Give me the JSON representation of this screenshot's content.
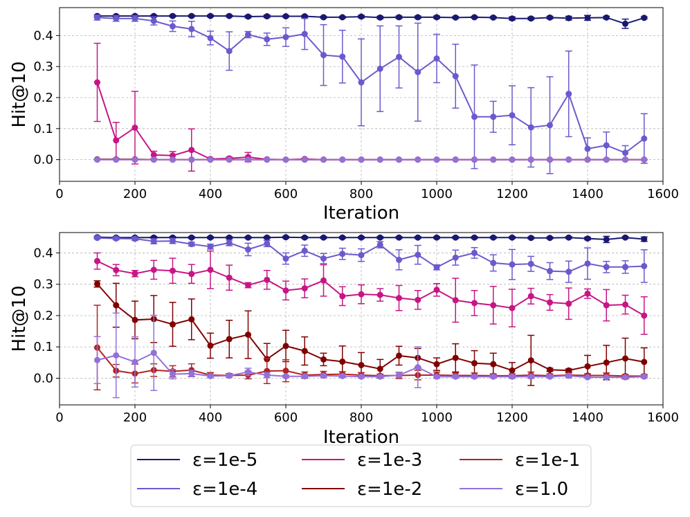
{
  "chart_data": [
    {
      "type": "line",
      "ylabel": "Hit@10",
      "xlabel": "Iteration",
      "xlim": [
        0,
        1600
      ],
      "ylim": [
        -0.07,
        0.49
      ],
      "xticks": [
        0,
        200,
        400,
        600,
        800,
        1000,
        1200,
        1400,
        1600
      ],
      "yticks": [
        0.0,
        0.1,
        0.2,
        0.3,
        0.4
      ],
      "grid": true,
      "x": [
        100,
        150,
        200,
        250,
        300,
        350,
        400,
        450,
        500,
        550,
        600,
        650,
        700,
        750,
        800,
        850,
        900,
        950,
        1000,
        1050,
        1100,
        1150,
        1200,
        1250,
        1300,
        1350,
        1400,
        1450,
        1500,
        1550
      ],
      "series": [
        {
          "name": "ε=1e-5",
          "color": "#191970",
          "values": [
            0.463,
            0.463,
            0.463,
            0.463,
            0.463,
            0.463,
            0.463,
            0.463,
            0.461,
            0.462,
            0.462,
            0.462,
            0.459,
            0.459,
            0.461,
            0.458,
            0.459,
            0.459,
            0.459,
            0.458,
            0.459,
            0.458,
            0.455,
            0.455,
            0.458,
            0.456,
            0.457,
            0.458,
            0.438,
            0.457
          ],
          "errors": [
            0.004,
            0.003,
            0.003,
            0.003,
            0.003,
            0.003,
            0.003,
            0.003,
            0.004,
            0.004,
            0.003,
            0.003,
            0.003,
            0.003,
            0.004,
            0.004,
            0.004,
            0.004,
            0.004,
            0.003,
            0.003,
            0.003,
            0.005,
            0.004,
            0.004,
            0.006,
            0.008,
            0.004,
            0.015,
            0.003
          ]
        },
        {
          "name": "ε=1e-4",
          "color": "#6a5acd",
          "values": [
            0.458,
            0.455,
            0.455,
            0.447,
            0.43,
            0.421,
            0.392,
            0.35,
            0.403,
            0.388,
            0.395,
            0.405,
            0.337,
            0.332,
            0.249,
            0.293,
            0.331,
            0.282,
            0.326,
            0.269,
            0.138,
            0.138,
            0.143,
            0.104,
            0.111,
            0.212,
            0.035,
            0.046,
            0.022,
            0.068
          ],
          "errors": [
            0.008,
            0.009,
            0.009,
            0.013,
            0.017,
            0.025,
            0.022,
            0.062,
            0.01,
            0.02,
            0.03,
            0.05,
            0.098,
            0.085,
            0.14,
            0.138,
            0.1,
            0.158,
            0.078,
            0.103,
            0.167,
            0.05,
            0.095,
            0.128,
            0.156,
            0.138,
            0.035,
            0.043,
            0.023,
            0.08
          ]
        },
        {
          "name": "ε=1e-3",
          "color": "#c71585",
          "values": [
            0.249,
            0.062,
            0.103,
            0.015,
            0.013,
            0.031,
            0.002,
            0.004,
            0.008,
            0.001,
            0.0,
            0.002,
            0.0,
            0.0,
            0.0,
            0.0,
            0.0,
            0.0,
            0.0,
            0.0,
            0.0,
            0.0,
            0.0,
            0.0,
            0.0,
            0.0,
            0.0,
            0.0,
            0.0,
            0.0
          ],
          "errors": [
            0.126,
            0.058,
            0.117,
            0.012,
            0.013,
            0.068,
            0.002,
            0.004,
            0.015,
            0.001,
            0.0,
            0.002,
            0.0,
            0.0,
            0.0,
            0.0,
            0.0,
            0.0,
            0.0,
            0.0,
            0.0,
            0.0,
            0.0,
            0.0,
            0.0,
            0.0,
            0.0,
            0.0,
            0.0,
            0.0
          ]
        },
        {
          "name": "ε=1e-2",
          "color": "#800000",
          "values": [
            0.001,
            0.001,
            0.001,
            0.0,
            0.0,
            0.0,
            0.0,
            0.0,
            0.0,
            0.0,
            0.0,
            0.0,
            0.0,
            0.0,
            0.0,
            0.0,
            0.0,
            0.0,
            0.0,
            0.0,
            0.0,
            0.0,
            0.0,
            0.0,
            0.0,
            0.0,
            0.0,
            0.0,
            0.0,
            0.0
          ],
          "errors": [
            0.001,
            0.001,
            0.001,
            0,
            0,
            0,
            0,
            0,
            0,
            0,
            0,
            0,
            0,
            0,
            0,
            0,
            0,
            0,
            0,
            0,
            0,
            0,
            0,
            0,
            0,
            0,
            0,
            0,
            0,
            0
          ]
        },
        {
          "name": "ε=1e-1",
          "color": "#b22222",
          "values": [
            0.0,
            0.0,
            0.0,
            0.0,
            0.0,
            0.0,
            0.0,
            0.0,
            0.0,
            0.0,
            0.0,
            0.0,
            0.0,
            0.0,
            0.0,
            0.0,
            0.0,
            0.0,
            0.0,
            0.0,
            0.0,
            0.0,
            0.0,
            0.0,
            0.0,
            0.0,
            0.0,
            0.0,
            0.0,
            0.0
          ],
          "errors": [
            0,
            0,
            0,
            0,
            0,
            0,
            0,
            0,
            0,
            0,
            0,
            0,
            0,
            0,
            0,
            0,
            0,
            0,
            0,
            0,
            0,
            0,
            0,
            0,
            0,
            0,
            0,
            0,
            0,
            0
          ]
        },
        {
          "name": "ε=1.0",
          "color": "#9370db",
          "values": [
            0.0,
            0.0,
            0.0,
            0.0,
            0.0,
            0.0,
            0.0,
            0.0,
            0.0,
            0.0,
            0.0,
            0.0,
            0.0,
            0.0,
            0.0,
            0.0,
            0.0,
            0.0,
            0.0,
            0.0,
            0.0,
            0.0,
            0.0,
            0.0,
            0.0,
            0.0,
            0.0,
            0.0,
            0.0,
            0.0
          ],
          "errors": [
            0,
            0,
            0,
            0,
            0,
            0,
            0,
            0,
            0,
            0,
            0,
            0,
            0,
            0,
            0,
            0,
            0,
            0,
            0,
            0,
            0,
            0,
            0,
            0,
            0,
            0,
            0,
            0,
            0,
            0
          ]
        }
      ]
    },
    {
      "type": "line",
      "ylabel": "Hit@10",
      "xlabel": "Iteration",
      "xlim": [
        0,
        1600
      ],
      "ylim": [
        -0.085,
        0.465
      ],
      "xticks": [
        0,
        200,
        400,
        600,
        800,
        1000,
        1200,
        1400,
        1600
      ],
      "yticks": [
        0.0,
        0.1,
        0.2,
        0.3,
        0.4
      ],
      "grid": true,
      "x": [
        100,
        150,
        200,
        250,
        300,
        350,
        400,
        450,
        500,
        550,
        600,
        650,
        700,
        750,
        800,
        850,
        900,
        950,
        1000,
        1050,
        1100,
        1150,
        1200,
        1250,
        1300,
        1350,
        1400,
        1450,
        1500,
        1550
      ],
      "series": [
        {
          "name": "ε=1e-5",
          "color": "#191970",
          "values": [
            0.45,
            0.449,
            0.449,
            0.449,
            0.449,
            0.449,
            0.449,
            0.449,
            0.449,
            0.449,
            0.45,
            0.449,
            0.449,
            0.449,
            0.449,
            0.449,
            0.449,
            0.449,
            0.449,
            0.449,
            0.449,
            0.449,
            0.449,
            0.448,
            0.448,
            0.449,
            0.446,
            0.443,
            0.449,
            0.444
          ],
          "errors": [
            0.003,
            0.003,
            0.003,
            0.003,
            0.003,
            0.003,
            0.003,
            0.003,
            0.003,
            0.003,
            0.003,
            0.003,
            0.003,
            0.003,
            0.003,
            0.003,
            0.003,
            0.003,
            0.003,
            0.003,
            0.003,
            0.003,
            0.003,
            0.003,
            0.003,
            0.003,
            0.004,
            0.01,
            0.003,
            0.007
          ]
        },
        {
          "name": "ε=1e-4",
          "color": "#6a5acd",
          "values": [
            0.448,
            0.446,
            0.445,
            0.437,
            0.438,
            0.428,
            0.42,
            0.432,
            0.411,
            0.43,
            0.382,
            0.407,
            0.382,
            0.397,
            0.393,
            0.426,
            0.378,
            0.394,
            0.354,
            0.385,
            0.4,
            0.368,
            0.363,
            0.365,
            0.342,
            0.34,
            0.366,
            0.355,
            0.355,
            0.358
          ],
          "errors": [
            0.003,
            0.004,
            0.005,
            0.008,
            0.008,
            0.006,
            0.008,
            0.009,
            0.02,
            0.01,
            0.018,
            0.018,
            0.016,
            0.018,
            0.02,
            0.01,
            0.032,
            0.03,
            0.008,
            0.024,
            0.017,
            0.026,
            0.048,
            0.024,
            0.027,
            0.034,
            0.05,
            0.018,
            0.02,
            0.052
          ]
        },
        {
          "name": "ε=1e-3",
          "color": "#c71585",
          "values": [
            0.374,
            0.345,
            0.334,
            0.346,
            0.343,
            0.333,
            0.346,
            0.321,
            0.297,
            0.314,
            0.28,
            0.287,
            0.312,
            0.262,
            0.268,
            0.266,
            0.256,
            0.25,
            0.282,
            0.249,
            0.24,
            0.233,
            0.224,
            0.262,
            0.242,
            0.238,
            0.27,
            0.233,
            0.235,
            0.2
          ],
          "errors": [
            0.026,
            0.018,
            0.01,
            0.03,
            0.04,
            0.03,
            0.06,
            0.04,
            0.008,
            0.03,
            0.03,
            0.03,
            0.05,
            0.03,
            0.03,
            0.02,
            0.04,
            0.03,
            0.02,
            0.07,
            0.04,
            0.06,
            0.06,
            0.025,
            0.025,
            0.05,
            0.015,
            0.05,
            0.03,
            0.06
          ]
        },
        {
          "name": "ε=1e-2",
          "color": "#800000",
          "values": [
            0.301,
            0.233,
            0.186,
            0.189,
            0.172,
            0.188,
            0.104,
            0.125,
            0.139,
            0.061,
            0.103,
            0.087,
            0.06,
            0.053,
            0.042,
            0.03,
            0.072,
            0.065,
            0.045,
            0.065,
            0.048,
            0.045,
            0.025,
            0.057,
            0.027,
            0.025,
            0.038,
            0.05,
            0.063,
            0.052
          ],
          "errors": [
            0.01,
            0.07,
            0.06,
            0.075,
            0.07,
            0.065,
            0.04,
            0.06,
            0.076,
            0.05,
            0.05,
            0.045,
            0.02,
            0.05,
            0.04,
            0.03,
            0.03,
            0.03,
            0.02,
            0.045,
            0.04,
            0.035,
            0.025,
            0.08,
            0.005,
            0.005,
            0.035,
            0.055,
            0.065,
            0.045
          ]
        },
        {
          "name": "ε=1e-1",
          "color": "#b22222",
          "values": [
            0.098,
            0.024,
            0.015,
            0.026,
            0.022,
            0.026,
            0.01,
            0.009,
            0.01,
            0.023,
            0.024,
            0.01,
            0.012,
            0.013,
            0.01,
            0.008,
            0.009,
            0.01,
            0.01,
            0.009,
            0.009,
            0.008,
            0.008,
            0.01,
            0.008,
            0.01,
            0.009,
            0.009,
            0.007,
            0.007
          ],
          "errors": [
            0.135,
            0.02,
            0.03,
            0.02,
            0.018,
            0.02,
            0.008,
            0.006,
            0.012,
            0.04,
            0.035,
            0.01,
            0.01,
            0.008,
            0.008,
            0.005,
            0.01,
            0.015,
            0.01,
            0.008,
            0.008,
            0.006,
            0.006,
            0.01,
            0.006,
            0.008,
            0.005,
            0.008,
            0.005,
            0.005
          ]
        },
        {
          "name": "ε=1.0",
          "color": "#9370db",
          "values": [
            0.058,
            0.073,
            0.052,
            0.081,
            0.013,
            0.015,
            0.007,
            0.008,
            0.02,
            0.01,
            0.006,
            0.006,
            0.008,
            0.007,
            0.005,
            0.005,
            0.01,
            0.035,
            0.005,
            0.005,
            0.005,
            0.005,
            0.005,
            0.005,
            0.005,
            0.008,
            0.003,
            0.003,
            0.003,
            0.005
          ],
          "errors": [
            0.075,
            0.135,
            0.08,
            0.12,
            0.015,
            0.01,
            0.005,
            0.005,
            0.012,
            0.008,
            0.004,
            0.004,
            0.005,
            0.005,
            0.004,
            0.004,
            0.008,
            0.065,
            0.004,
            0.004,
            0.004,
            0.004,
            0.004,
            0.004,
            0.004,
            0.005,
            0.002,
            0.002,
            0.002,
            0.004
          ]
        }
      ]
    }
  ],
  "legend": {
    "placement": "bottom-center",
    "entries": [
      "ε=1e-5",
      "ε=1e-4",
      "ε=1e-3",
      "ε=1e-2",
      "ε=1e-1",
      "ε=1.0"
    ]
  }
}
